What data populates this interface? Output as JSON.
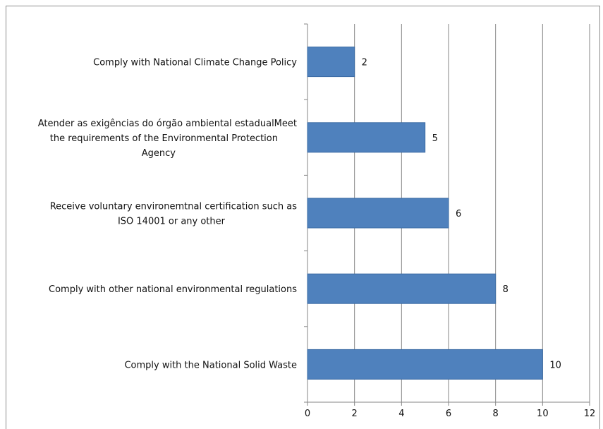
{
  "chart_data": {
    "type": "bar",
    "orientation": "horizontal",
    "categories": [
      "Comply with National Climate Change Policy",
      "Atender as exigências do órgão ambiental estadualMeet the requirements of the Environmental Protection Agency",
      "Receive voluntary environemtnal certification such as ISO 14001 or any other",
      "Comply with other national environmental regulations",
      "Comply with the National Solid Waste"
    ],
    "category_lines": [
      [
        "Comply with National Climate Change Policy"
      ],
      [
        "Atender as exigências do órgão ambiental estadualMeet",
        "the requirements of the Environmental Protection",
        "Agency"
      ],
      [
        "Receive voluntary environemtnal certification such as",
        "ISO 14001 or any other"
      ],
      [
        "Comply with other national environmental regulations"
      ],
      [
        "Comply with the National Solid Waste"
      ]
    ],
    "values": [
      2,
      5,
      6,
      8,
      10
    ],
    "data_labels": [
      "2",
      "5",
      "6",
      "8",
      "10"
    ],
    "xlim": [
      0,
      12
    ],
    "xticks": [
      "0",
      "2",
      "4",
      "6",
      "8",
      "10",
      "12"
    ],
    "grid": "vertical",
    "legend": "none",
    "bar_color": "#4f81bd",
    "bar_edge_color": "#3a6aa3",
    "grid_color": "#868686"
  }
}
